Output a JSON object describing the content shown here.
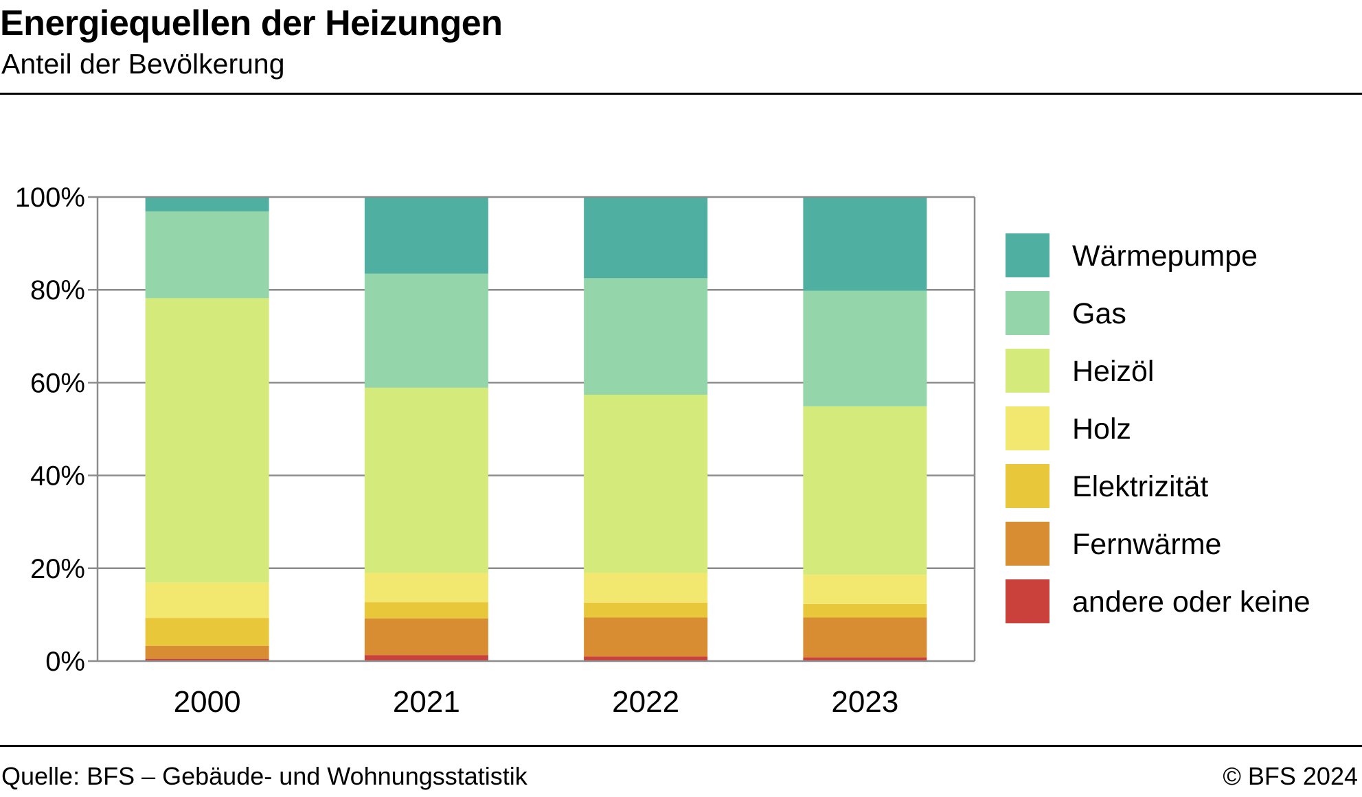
{
  "header": {
    "title": "Energiequellen der Heizungen",
    "subtitle": "Anteil der Bevölkerung"
  },
  "footer": {
    "source": "Quelle: BFS – Gebäude- und Wohnungsstatistik",
    "copyright": "© BFS 2024"
  },
  "chart_data": {
    "type": "bar",
    "stacked": true,
    "title": "Energiequellen der Heizungen",
    "subtitle": "Anteil der Bevölkerung",
    "categories": [
      "2000",
      "2021",
      "2022",
      "2023"
    ],
    "ylim": [
      0,
      100
    ],
    "yticks": [
      0,
      20,
      40,
      60,
      80,
      100
    ],
    "ytick_labels": [
      "0%",
      "20%",
      "40%",
      "60%",
      "80%",
      "100%"
    ],
    "grid": true,
    "legend_position": "right",
    "series": [
      {
        "name": "andere oder keine",
        "color": "#c9413a",
        "values": [
          0.5,
          1.3,
          1.0,
          0.8
        ]
      },
      {
        "name": "Fernwärme",
        "color": "#d98d33",
        "values": [
          2.8,
          7.9,
          8.4,
          8.6
        ]
      },
      {
        "name": "Elektrizität",
        "color": "#e8c73a",
        "values": [
          6.0,
          3.5,
          3.2,
          2.9
        ]
      },
      {
        "name": "Holz",
        "color": "#f2e870",
        "values": [
          7.6,
          6.3,
          6.4,
          6.3
        ]
      },
      {
        "name": "Heizöl",
        "color": "#d4ea7b",
        "values": [
          61.3,
          39.9,
          38.4,
          36.3
        ]
      },
      {
        "name": "Gas",
        "color": "#94d5a9",
        "values": [
          18.7,
          24.6,
          25.1,
          24.9
        ]
      },
      {
        "name": "Wärmepumpe",
        "color": "#4fb0a1",
        "values": [
          3.1,
          16.5,
          17.5,
          20.2
        ]
      }
    ],
    "legend_order": [
      "Wärmepumpe",
      "Gas",
      "Heizöl",
      "Holz",
      "Elektrizität",
      "Fernwärme",
      "andere oder keine"
    ]
  }
}
